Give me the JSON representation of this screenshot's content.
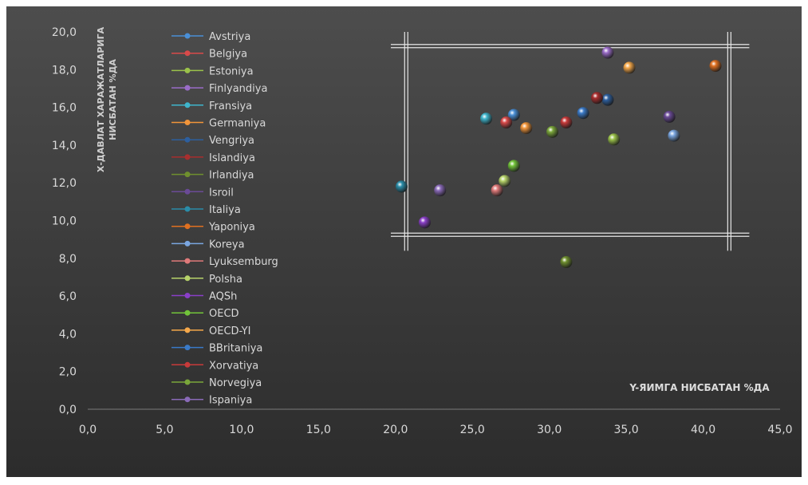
{
  "chart_data": {
    "type": "scatter",
    "xlabel": "Y-ЯИМГА НИСБАТАН %ДА",
    "ylabel_line1": "Х-ДАВЛАТ ХАРАЖАТЛАРИГА",
    "ylabel_line2": "НИСБАТАН %ДА",
    "xlim": [
      0,
      45
    ],
    "ylim": [
      0,
      20
    ],
    "x_ticks": [
      0,
      5,
      10,
      15,
      20,
      25,
      30,
      35,
      40,
      45
    ],
    "y_ticks": [
      0,
      2,
      4,
      6,
      8,
      10,
      12,
      14,
      16,
      18,
      20
    ],
    "x_tick_labels": [
      "0,0",
      "5,0",
      "10,0",
      "15,0",
      "20,0",
      "25,0",
      "30,0",
      "35,0",
      "40,0",
      "45,0"
    ],
    "y_tick_labels": [
      "0,0",
      "2,0",
      "4,0",
      "6,0",
      "8,0",
      "10,0",
      "12,0",
      "14,0",
      "16,0",
      "18,0",
      "20,0"
    ],
    "grid": false,
    "legend_position": "left",
    "series": [
      {
        "name": "Avstriya",
        "color": "#4a8fd6",
        "x": 27.7,
        "y": 15.6
      },
      {
        "name": "Belgiya",
        "color": "#d94a4a",
        "x": 27.2,
        "y": 15.2
      },
      {
        "name": "Estoniya",
        "color": "#9bc24a",
        "x": 34.2,
        "y": 14.3
      },
      {
        "name": "Finlyandiya",
        "color": "#9a6cc8",
        "x": 33.8,
        "y": 18.9
      },
      {
        "name": "Fransiya",
        "color": "#3fb5cc",
        "x": 25.9,
        "y": 15.4
      },
      {
        "name": "Germaniya",
        "color": "#f2953a",
        "x": 28.5,
        "y": 14.9
      },
      {
        "name": "Vengriya",
        "color": "#2d5f9e",
        "x": 33.8,
        "y": 16.4
      },
      {
        "name": "Islandiya",
        "color": "#a82e2e",
        "x": 33.1,
        "y": 16.5
      },
      {
        "name": "Irlandiya",
        "color": "#6f8f2e",
        "x": 31.1,
        "y": 7.8
      },
      {
        "name": "Isroil",
        "color": "#6a4a96",
        "x": 37.8,
        "y": 15.5
      },
      {
        "name": "Italiya",
        "color": "#2a8ca8",
        "x": 20.4,
        "y": 11.8
      },
      {
        "name": "Yaponiya",
        "color": "#e07020",
        "x": 40.8,
        "y": 18.2
      },
      {
        "name": "Koreya",
        "color": "#7aa6e0",
        "x": 38.1,
        "y": 14.5
      },
      {
        "name": "Lyuksemburg",
        "color": "#e07a7a",
        "x": 26.6,
        "y": 11.6
      },
      {
        "name": "Polsha",
        "color": "#b7d36a",
        "x": 27.1,
        "y": 12.1
      },
      {
        "name": "AQSh",
        "color": "#8a3fc8",
        "x": 21.9,
        "y": 9.9
      },
      {
        "name": "OECD",
        "color": "#72c43a",
        "x": 27.7,
        "y": 12.9
      },
      {
        "name": "OECD-YI",
        "color": "#f5a84a",
        "x": 35.2,
        "y": 18.1
      },
      {
        "name": "BBritaniya",
        "color": "#3a7ac8",
        "x": 32.2,
        "y": 15.7
      },
      {
        "name": "Xorvatiya",
        "color": "#c83a3a",
        "x": 31.1,
        "y": 15.2
      },
      {
        "name": "Norvegiya",
        "color": "#7aa63a",
        "x": 30.2,
        "y": 14.7
      },
      {
        "name": "Ispaniya",
        "color": "#8a6ab8",
        "x": 22.9,
        "y": 11.6
      }
    ]
  }
}
